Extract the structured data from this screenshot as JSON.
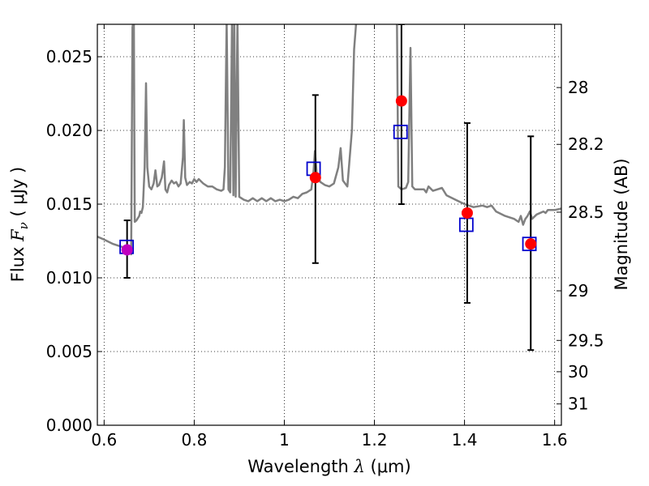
{
  "chart_data": {
    "type": "scatter",
    "title": "",
    "xlabel": {
      "prefix": "Wavelength  ",
      "symbol": "λ",
      "units": " (μm)"
    },
    "ylabel": {
      "prefix": "Flux  ",
      "symbol": "F",
      "subscript": "ν",
      "units": "  ( μJy )"
    },
    "ylabel_right": "Magnitude (AB)",
    "xlim": [
      0.585,
      1.615
    ],
    "ylim": [
      0.0,
      0.0272
    ],
    "grid": true,
    "x_ticks": [
      {
        "value": 0.6,
        "label": "0.6"
      },
      {
        "value": 0.8,
        "label": "0.8"
      },
      {
        "value": 1.0,
        "label": "1"
      },
      {
        "value": 1.2,
        "label": "1.2"
      },
      {
        "value": 1.4,
        "label": "1.4"
      },
      {
        "value": 1.6,
        "label": "1.6"
      }
    ],
    "y_ticks": [
      {
        "value": 0.0,
        "label": "0.000"
      },
      {
        "value": 0.005,
        "label": "0.005"
      },
      {
        "value": 0.01,
        "label": "0.010"
      },
      {
        "value": 0.015,
        "label": "0.015"
      },
      {
        "value": 0.02,
        "label": "0.020"
      },
      {
        "value": 0.025,
        "label": "0.025"
      }
    ],
    "right_ticks": [
      {
        "mag": 28,
        "label": "28"
      },
      {
        "mag": 28.2,
        "label": "28.2"
      },
      {
        "mag": 28.5,
        "label": "28.5"
      },
      {
        "mag": 29,
        "label": "29"
      },
      {
        "mag": 29.5,
        "label": "29.5"
      },
      {
        "mag": 30,
        "label": "30"
      },
      {
        "mag": 31,
        "label": "31"
      }
    ],
    "template": {
      "color": "#808080",
      "points": [
        [
          0.585,
          0.0128
        ],
        [
          0.6,
          0.0126
        ],
        [
          0.62,
          0.0123
        ],
        [
          0.64,
          0.0121
        ],
        [
          0.65,
          0.0119
        ],
        [
          0.655,
          0.012
        ],
        [
          0.66,
          0.0116
        ],
        [
          0.663,
          0.027
        ],
        [
          0.666,
          0.0275
        ],
        [
          0.668,
          0.0138
        ],
        [
          0.672,
          0.0139
        ],
        [
          0.678,
          0.0142
        ],
        [
          0.68,
          0.0145
        ],
        [
          0.683,
          0.0144
        ],
        [
          0.686,
          0.0148
        ],
        [
          0.69,
          0.0175
        ],
        [
          0.693,
          0.0232
        ],
        [
          0.696,
          0.0175
        ],
        [
          0.7,
          0.0162
        ],
        [
          0.705,
          0.016
        ],
        [
          0.71,
          0.0164
        ],
        [
          0.714,
          0.0173
        ],
        [
          0.718,
          0.0162
        ],
        [
          0.722,
          0.0163
        ],
        [
          0.728,
          0.0168
        ],
        [
          0.73,
          0.0172
        ],
        [
          0.733,
          0.0179
        ],
        [
          0.736,
          0.016
        ],
        [
          0.74,
          0.0158
        ],
        [
          0.744,
          0.0163
        ],
        [
          0.75,
          0.0166
        ],
        [
          0.755,
          0.0164
        ],
        [
          0.76,
          0.0165
        ],
        [
          0.765,
          0.0162
        ],
        [
          0.77,
          0.0164
        ],
        [
          0.775,
          0.0182
        ],
        [
          0.777,
          0.0207
        ],
        [
          0.78,
          0.0168
        ],
        [
          0.784,
          0.0163
        ],
        [
          0.79,
          0.0165
        ],
        [
          0.795,
          0.0164
        ],
        [
          0.8,
          0.0167
        ],
        [
          0.805,
          0.0165
        ],
        [
          0.81,
          0.0167
        ],
        [
          0.82,
          0.0164
        ],
        [
          0.83,
          0.0162
        ],
        [
          0.84,
          0.0162
        ],
        [
          0.85,
          0.016
        ],
        [
          0.86,
          0.0159
        ],
        [
          0.865,
          0.016
        ],
        [
          0.868,
          0.0175
        ],
        [
          0.872,
          0.0275
        ],
        [
          0.876,
          0.016
        ],
        [
          0.88,
          0.0158
        ],
        [
          0.884,
          0.0275
        ],
        [
          0.887,
          0.0156
        ],
        [
          0.889,
          0.0275
        ],
        [
          0.892,
          0.0155
        ],
        [
          0.896,
          0.0275
        ],
        [
          0.9,
          0.0155
        ],
        [
          0.91,
          0.0153
        ],
        [
          0.92,
          0.0152
        ],
        [
          0.93,
          0.0154
        ],
        [
          0.94,
          0.0152
        ],
        [
          0.95,
          0.0154
        ],
        [
          0.96,
          0.0152
        ],
        [
          0.97,
          0.0154
        ],
        [
          0.98,
          0.0152
        ],
        [
          0.99,
          0.0153
        ],
        [
          1.0,
          0.0152
        ],
        [
          1.01,
          0.0153
        ],
        [
          1.02,
          0.0155
        ],
        [
          1.03,
          0.0154
        ],
        [
          1.04,
          0.0157
        ],
        [
          1.05,
          0.0158
        ],
        [
          1.06,
          0.016
        ],
        [
          1.065,
          0.0173
        ],
        [
          1.068,
          0.0186
        ],
        [
          1.072,
          0.017
        ],
        [
          1.08,
          0.0165
        ],
        [
          1.09,
          0.0163
        ],
        [
          1.1,
          0.0162
        ],
        [
          1.11,
          0.0164
        ],
        [
          1.12,
          0.0175
        ],
        [
          1.125,
          0.0188
        ],
        [
          1.13,
          0.0166
        ],
        [
          1.14,
          0.0162
        ],
        [
          1.15,
          0.02
        ],
        [
          1.155,
          0.0255
        ],
        [
          1.16,
          0.0275
        ],
        [
          1.25,
          0.0275
        ],
        [
          1.253,
          0.0162
        ],
        [
          1.26,
          0.016
        ],
        [
          1.27,
          0.0161
        ],
        [
          1.275,
          0.0165
        ],
        [
          1.28,
          0.0256
        ],
        [
          1.284,
          0.0162
        ],
        [
          1.29,
          0.016
        ],
        [
          1.3,
          0.016
        ],
        [
          1.31,
          0.016
        ],
        [
          1.315,
          0.0158
        ],
        [
          1.32,
          0.0162
        ],
        [
          1.33,
          0.0159
        ],
        [
          1.35,
          0.0161
        ],
        [
          1.36,
          0.0156
        ],
        [
          1.38,
          0.0153
        ],
        [
          1.4,
          0.015
        ],
        [
          1.42,
          0.0148
        ],
        [
          1.44,
          0.0149
        ],
        [
          1.45,
          0.0148
        ],
        [
          1.46,
          0.0149
        ],
        [
          1.47,
          0.0145
        ],
        [
          1.49,
          0.0142
        ],
        [
          1.51,
          0.014
        ],
        [
          1.52,
          0.0138
        ],
        [
          1.525,
          0.0142
        ],
        [
          1.53,
          0.0136
        ],
        [
          1.535,
          0.014
        ],
        [
          1.54,
          0.0142
        ],
        [
          1.545,
          0.0145
        ],
        [
          1.55,
          0.014
        ],
        [
          1.56,
          0.0143
        ],
        [
          1.575,
          0.0145
        ],
        [
          1.58,
          0.0144
        ],
        [
          1.585,
          0.0146
        ],
        [
          1.6,
          0.0146
        ],
        [
          1.615,
          0.0147
        ]
      ]
    },
    "observed": {
      "color": "#ff0000",
      "points": [
        {
          "x": 0.651,
          "y": 0.0119,
          "yerr_low": 0.01,
          "yerr_high": 0.0139,
          "color": "#c000c0"
        },
        {
          "x": 1.069,
          "y": 0.0168,
          "yerr_low": 0.011,
          "yerr_high": 0.0224
        },
        {
          "x": 1.26,
          "y": 0.022,
          "yerr_low": 0.015,
          "yerr_high": 0.0272
        },
        {
          "x": 1.406,
          "y": 0.0144,
          "yerr_low": 0.0083,
          "yerr_high": 0.0205
        },
        {
          "x": 1.547,
          "y": 0.0123,
          "yerr_low": 0.0051,
          "yerr_high": 0.0196
        }
      ]
    },
    "model": {
      "color": "#0000cc",
      "points": [
        {
          "x": 0.65,
          "y": 0.0121
        },
        {
          "x": 1.065,
          "y": 0.0174
        },
        {
          "x": 1.258,
          "y": 0.0199
        },
        {
          "x": 1.404,
          "y": 0.0136
        },
        {
          "x": 1.544,
          "y": 0.0123
        }
      ]
    }
  }
}
